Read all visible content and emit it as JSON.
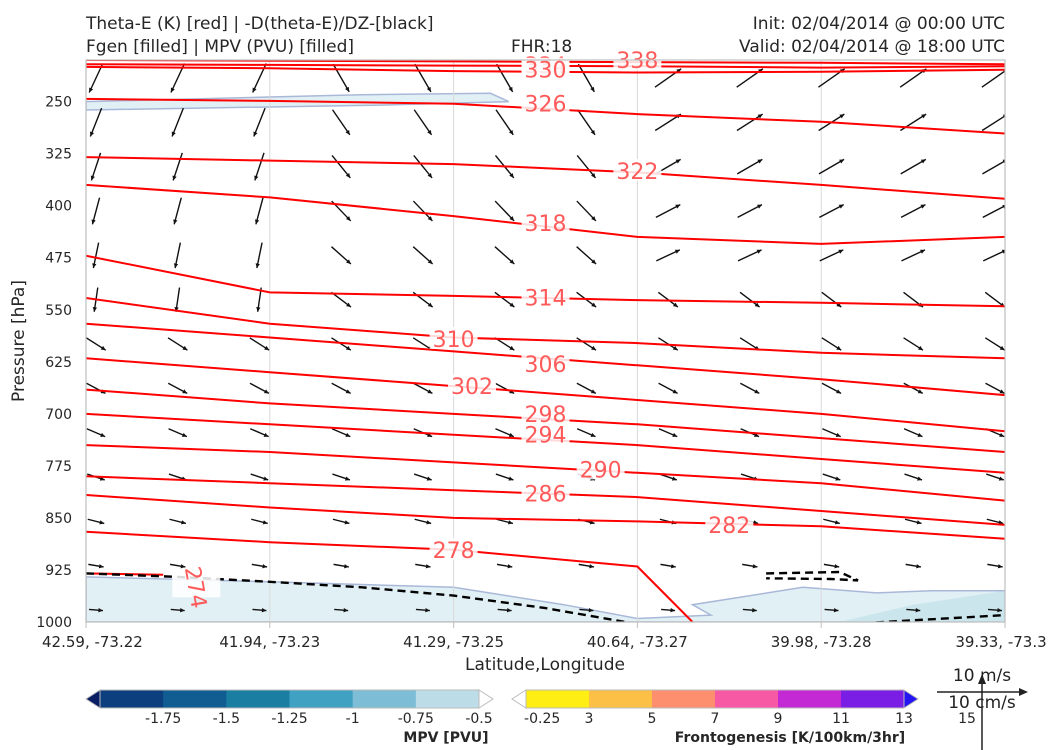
{
  "header": {
    "title_left_1": "Theta-E (K) [red] | -D(theta-E)/DZ-[black]",
    "title_left_2": "Fgen [filled] | MPV (PVU) [filled]",
    "fhr": "FHR:18",
    "init": "Init: 02/04/2014 @ 00:00 UTC",
    "valid": "Valid: 02/04/2014 @ 18:00 UTC"
  },
  "chart_data": {
    "type": "cross-section",
    "xlabel": "Latitude,Longitude",
    "ylabel": "Pressure [hPa]",
    "x_ticks": [
      "42.59, -73.22",
      "41.94, -73.23",
      "41.29, -73.25",
      "40.64, -73.27",
      "39.98, -73.28",
      "39.33, -73.3"
    ],
    "y_ticks": [
      250,
      325,
      400,
      475,
      550,
      625,
      700,
      775,
      850,
      925,
      1000
    ],
    "ylim": [
      1000,
      190
    ],
    "theta_e": {
      "color": "#ff0000",
      "levels": [
        {
          "value": 338,
          "label": "338",
          "points": [
            [
              0,
              190
            ],
            [
              2,
              192
            ],
            [
              4,
              194
            ],
            [
              5,
              196
            ]
          ]
        },
        {
          "value": 334,
          "label": "334",
          "points": [
            [
              0,
              196
            ],
            [
              1,
              197
            ],
            [
              2,
              198
            ],
            [
              3,
              199
            ],
            [
              4,
              201
            ],
            [
              5,
              199
            ]
          ]
        },
        {
          "value": 330,
          "label": "330",
          "points": [
            [
              0,
              200
            ],
            [
              1,
              202
            ],
            [
              2,
              206
            ],
            [
              3,
              208
            ],
            [
              4,
              207
            ],
            [
              5,
              204
            ]
          ]
        },
        {
          "value": 326,
          "label": "326",
          "points": [
            [
              0,
              246
            ],
            [
              1,
              249
            ],
            [
              2,
              253
            ],
            [
              3,
              268
            ],
            [
              4,
              279
            ],
            [
              5,
              296
            ]
          ]
        },
        {
          "value": 322,
          "label": "322",
          "points": [
            [
              0,
              330
            ],
            [
              1,
              335
            ],
            [
              2,
              340
            ],
            [
              3,
              352
            ],
            [
              4,
              370
            ],
            [
              5,
              390
            ]
          ]
        },
        {
          "value": 318,
          "label": "318",
          "points": [
            [
              0,
              370
            ],
            [
              1,
              388
            ],
            [
              2,
              415
            ],
            [
              3,
              445
            ],
            [
              4,
              455
            ],
            [
              5,
              445
            ]
          ]
        },
        {
          "value": 314,
          "label": "314",
          "points": [
            [
              0,
              472
            ],
            [
              1,
              525
            ],
            [
              2,
              530
            ],
            [
              3,
              536
            ],
            [
              4,
              540
            ],
            [
              5,
              545
            ]
          ]
        },
        {
          "value": 310,
          "label": "310",
          "points": [
            [
              0,
              533
            ],
            [
              1,
              570
            ],
            [
              2,
              590
            ],
            [
              3,
              598
            ],
            [
              4,
              612
            ],
            [
              5,
              620
            ]
          ]
        },
        {
          "value": 306,
          "label": "306",
          "points": [
            [
              0,
              570
            ],
            [
              1,
              590
            ],
            [
              2,
              610
            ],
            [
              3,
              630
            ],
            [
              4,
              650
            ],
            [
              5,
              673
            ]
          ]
        },
        {
          "value": 302,
          "label": "302",
          "points": [
            [
              0,
              620
            ],
            [
              1,
              640
            ],
            [
              2,
              660
            ],
            [
              3,
              680
            ],
            [
              4,
              700
            ],
            [
              5,
              725
            ]
          ]
        },
        {
          "value": 298,
          "label": "298",
          "points": [
            [
              0,
              665
            ],
            [
              1,
              685
            ],
            [
              2,
              700
            ],
            [
              3,
              715
            ],
            [
              4,
              735
            ],
            [
              5,
              755
            ]
          ]
        },
        {
          "value": 294,
          "label": "294",
          "points": [
            [
              0,
              700
            ],
            [
              1,
              715
            ],
            [
              2,
              730
            ],
            [
              3,
              745
            ],
            [
              4,
              765
            ],
            [
              5,
              785
            ]
          ]
        },
        {
          "value": 290,
          "label": "290",
          "points": [
            [
              0,
              745
            ],
            [
              1,
              755
            ],
            [
              2,
              770
            ],
            [
              3,
              785
            ],
            [
              4,
              800
            ],
            [
              5,
              825
            ]
          ]
        },
        {
          "value": 286,
          "label": "286",
          "points": [
            [
              0,
              790
            ],
            [
              1,
              800
            ],
            [
              2,
              810
            ],
            [
              3,
              820
            ],
            [
              4,
              840
            ],
            [
              5,
              860
            ]
          ]
        },
        {
          "value": 282,
          "label": "282",
          "points": [
            [
              0,
              817
            ],
            [
              1,
              835
            ],
            [
              2,
              850
            ],
            [
              3,
              855
            ],
            [
              4,
              862
            ],
            [
              5,
              880
            ]
          ]
        },
        {
          "value": 278,
          "label": "278",
          "points": [
            [
              0,
              870
            ],
            [
              1,
              885
            ],
            [
              2,
              896
            ],
            [
              3,
              920
            ],
            [
              3.3,
              1000
            ]
          ]
        },
        {
          "value": 274,
          "label": "274",
          "points": [
            [
              0,
              930
            ],
            [
              0.42,
              932
            ]
          ]
        }
      ]
    },
    "neg_dthetae_dz": {
      "color": "#000000",
      "style": "dashed",
      "contours": [
        {
          "points": [
            [
              0,
              930
            ],
            [
              0.5,
              935
            ],
            [
              1,
              942
            ],
            [
              1.5,
              950
            ],
            [
              2,
              962
            ],
            [
              2.5,
              980
            ],
            [
              3,
              1003
            ],
            [
              4,
              1005
            ],
            [
              5,
              990
            ]
          ]
        },
        {
          "points": [
            [
              3.7,
              930
            ],
            [
              4.1,
              928
            ],
            [
              4.2,
              940
            ],
            [
              4.05,
              938
            ],
            [
              3.7,
              937
            ]
          ]
        }
      ]
    },
    "mpv_filled": {
      "levels": [
        -1.75,
        -1.5,
        -1.25,
        -1.0,
        -0.75,
        -0.5,
        -0.25
      ],
      "colors": [
        "#0a1f63",
        "#0d3f7e",
        "#115d91",
        "#1a7ea3",
        "#41a1c2",
        "#7dbdd5",
        "#bcdde8",
        "#ffffff"
      ],
      "label": "MPV [PVU]"
    },
    "fgen_filled": {
      "levels": [
        3,
        5,
        7,
        9,
        11,
        13,
        15
      ],
      "colors": [
        "#ffffff",
        "#ffee14",
        "#fdc046",
        "#fd8e6e",
        "#f859a5",
        "#c42ad4",
        "#7a1ee6",
        "#2515f0"
      ],
      "label": "Frontogenesis [K/100km/3hr]"
    },
    "wind_reference": {
      "horizontal": "10 m/s",
      "vertical": "10 cm/s"
    },
    "grid": true
  }
}
